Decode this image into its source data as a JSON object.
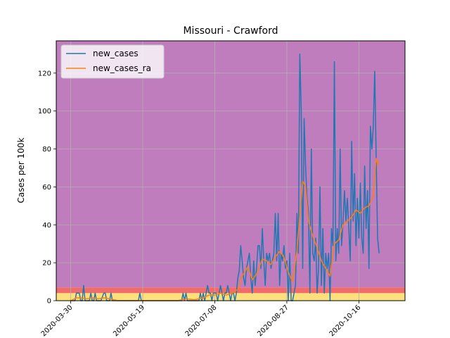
{
  "chart_data": {
    "type": "line",
    "title": "Missouri - Crawford",
    "xlabel": "",
    "ylabel": "Cases per 100k",
    "xlim": [
      "2020-03-20",
      "2020-11-17"
    ],
    "ylim": [
      0,
      137
    ],
    "grid": true,
    "legend_position": "top-left",
    "x_tick_labels": [
      "2020-03-30",
      "2020-05-19",
      "2020-07-08",
      "2020-08-27",
      "2020-10-16"
    ],
    "y_ticks": [
      0,
      20,
      40,
      60,
      80,
      100,
      120
    ],
    "background_bands": [
      {
        "from": 0,
        "to": 4,
        "color": "#fbe07c"
      },
      {
        "from": 4,
        "to": 7,
        "color": "#f26b6b"
      },
      {
        "from": 7,
        "to": 137,
        "color": "#bf7dbd"
      }
    ],
    "series": [
      {
        "name": "new_cases",
        "color": "#1f77b4",
        "points": [
          [
            "2020-03-30",
            0
          ],
          [
            "2020-04-02",
            0
          ],
          [
            "2020-04-03",
            4
          ],
          [
            "2020-04-05",
            4
          ],
          [
            "2020-04-06",
            0
          ],
          [
            "2020-04-07",
            0
          ],
          [
            "2020-04-08",
            8
          ],
          [
            "2020-04-09",
            0
          ],
          [
            "2020-04-10",
            0
          ],
          [
            "2020-04-12",
            0
          ],
          [
            "2020-04-13",
            4
          ],
          [
            "2020-04-14",
            0
          ],
          [
            "2020-04-15",
            0
          ],
          [
            "2020-04-16",
            4
          ],
          [
            "2020-04-17",
            0
          ],
          [
            "2020-04-20",
            0
          ],
          [
            "2020-04-22",
            4
          ],
          [
            "2020-04-23",
            4
          ],
          [
            "2020-04-24",
            0
          ],
          [
            "2020-04-26",
            0
          ],
          [
            "2020-04-27",
            4
          ],
          [
            "2020-04-28",
            0
          ],
          [
            "2020-05-16",
            0
          ],
          [
            "2020-05-17",
            4
          ],
          [
            "2020-05-18",
            0
          ],
          [
            "2020-06-15",
            0
          ],
          [
            "2020-06-16",
            4
          ],
          [
            "2020-06-17",
            0
          ],
          [
            "2020-06-18",
            4
          ],
          [
            "2020-06-19",
            0
          ],
          [
            "2020-06-27",
            0
          ],
          [
            "2020-06-28",
            4
          ],
          [
            "2020-06-29",
            0
          ],
          [
            "2020-06-30",
            4
          ],
          [
            "2020-07-01",
            0
          ],
          [
            "2020-07-02",
            4
          ],
          [
            "2020-07-03",
            8
          ],
          [
            "2020-07-04",
            4
          ],
          [
            "2020-07-05",
            4
          ],
          [
            "2020-07-06",
            0
          ],
          [
            "2020-07-07",
            4
          ],
          [
            "2020-07-08",
            4
          ],
          [
            "2020-07-09",
            4
          ],
          [
            "2020-07-10",
            0
          ],
          [
            "2020-07-11",
            4
          ],
          [
            "2020-07-12",
            8
          ],
          [
            "2020-07-13",
            4
          ],
          [
            "2020-07-14",
            0
          ],
          [
            "2020-07-15",
            4
          ],
          [
            "2020-07-16",
            4
          ],
          [
            "2020-07-17",
            8
          ],
          [
            "2020-07-18",
            4
          ],
          [
            "2020-07-19",
            0
          ],
          [
            "2020-07-20",
            4
          ],
          [
            "2020-07-21",
            4
          ],
          [
            "2020-07-22",
            0
          ],
          [
            "2020-07-23",
            4
          ],
          [
            "2020-07-24",
            12
          ],
          [
            "2020-07-25",
            16
          ],
          [
            "2020-07-26",
            29
          ],
          [
            "2020-07-27",
            21
          ],
          [
            "2020-07-28",
            12
          ],
          [
            "2020-07-29",
            8
          ],
          [
            "2020-07-30",
            17
          ],
          [
            "2020-07-31",
            21
          ],
          [
            "2020-08-01",
            25
          ],
          [
            "2020-08-02",
            12
          ],
          [
            "2020-08-03",
            4
          ],
          [
            "2020-08-04",
            21
          ],
          [
            "2020-08-05",
            8
          ],
          [
            "2020-08-06",
            17
          ],
          [
            "2020-08-07",
            29
          ],
          [
            "2020-08-08",
            29
          ],
          [
            "2020-08-09",
            17
          ],
          [
            "2020-08-10",
            38
          ],
          [
            "2020-08-11",
            21
          ],
          [
            "2020-08-12",
            8
          ],
          [
            "2020-08-13",
            25
          ],
          [
            "2020-08-14",
            21
          ],
          [
            "2020-08-15",
            25
          ],
          [
            "2020-08-16",
            17
          ],
          [
            "2020-08-17",
            21
          ],
          [
            "2020-08-18",
            25
          ],
          [
            "2020-08-19",
            46
          ],
          [
            "2020-08-20",
            21
          ],
          [
            "2020-08-21",
            46
          ],
          [
            "2020-08-22",
            8
          ],
          [
            "2020-08-23",
            25
          ],
          [
            "2020-08-24",
            21
          ],
          [
            "2020-08-25",
            29
          ],
          [
            "2020-08-26",
            17
          ],
          [
            "2020-08-27",
            21
          ],
          [
            "2020-08-28",
            0
          ],
          [
            "2020-08-29",
            25
          ],
          [
            "2020-08-30",
            0
          ],
          [
            "2020-08-31",
            0
          ],
          [
            "2020-09-01",
            4
          ],
          [
            "2020-09-02",
            8
          ],
          [
            "2020-09-03",
            46
          ],
          [
            "2020-09-04",
            25
          ],
          [
            "2020-09-05",
            130
          ],
          [
            "2020-09-06",
            100
          ],
          [
            "2020-09-07",
            17
          ],
          [
            "2020-09-08",
            96
          ],
          [
            "2020-09-09",
            71
          ],
          [
            "2020-09-10",
            54
          ],
          [
            "2020-09-11",
            46
          ],
          [
            "2020-09-12",
            4
          ],
          [
            "2020-09-13",
            80
          ],
          [
            "2020-09-14",
            25
          ],
          [
            "2020-09-15",
            21
          ],
          [
            "2020-09-16",
            33
          ],
          [
            "2020-09-17",
            4
          ],
          [
            "2020-09-18",
            17
          ],
          [
            "2020-09-19",
            60
          ],
          [
            "2020-09-20",
            8
          ],
          [
            "2020-09-21",
            38
          ],
          [
            "2020-09-22",
            4
          ],
          [
            "2020-09-23",
            25
          ],
          [
            "2020-09-24",
            17
          ],
          [
            "2020-09-25",
            25
          ],
          [
            "2020-09-26",
            0
          ],
          [
            "2020-09-27",
            38
          ],
          [
            "2020-09-28",
            29
          ],
          [
            "2020-09-29",
            126
          ],
          [
            "2020-09-30",
            21
          ],
          [
            "2020-10-01",
            38
          ],
          [
            "2020-10-02",
            25
          ],
          [
            "2020-10-03",
            80
          ],
          [
            "2020-10-04",
            29
          ],
          [
            "2020-10-05",
            42
          ],
          [
            "2020-10-06",
            58
          ],
          [
            "2020-10-07",
            42
          ],
          [
            "2020-10-08",
            54
          ],
          [
            "2020-10-09",
            38
          ],
          [
            "2020-10-10",
            21
          ],
          [
            "2020-10-11",
            84
          ],
          [
            "2020-10-12",
            42
          ],
          [
            "2020-10-13",
            67
          ],
          [
            "2020-10-14",
            29
          ],
          [
            "2020-10-15",
            54
          ],
          [
            "2020-10-16",
            33
          ],
          [
            "2020-10-17",
            62
          ],
          [
            "2020-10-18",
            33
          ],
          [
            "2020-10-19",
            25
          ],
          [
            "2020-10-20",
            71
          ],
          [
            "2020-10-21",
            38
          ],
          [
            "2020-10-22",
            58
          ],
          [
            "2020-10-23",
            17
          ],
          [
            "2020-10-24",
            92
          ],
          [
            "2020-10-25",
            80
          ],
          [
            "2020-10-26",
            92
          ],
          [
            "2020-10-27",
            121
          ],
          [
            "2020-10-28",
            75
          ],
          [
            "2020-10-29",
            33
          ],
          [
            "2020-10-30",
            25
          ]
        ]
      },
      {
        "name": "new_cases_ra",
        "color": "#ff7f0e",
        "points": [
          [
            "2020-03-30",
            0
          ],
          [
            "2020-04-03",
            1.5
          ],
          [
            "2020-04-06",
            1.5
          ],
          [
            "2020-04-10",
            1
          ],
          [
            "2020-04-14",
            1.5
          ],
          [
            "2020-04-18",
            1
          ],
          [
            "2020-04-22",
            1.5
          ],
          [
            "2020-04-26",
            1
          ],
          [
            "2020-05-02",
            0
          ],
          [
            "2020-06-12",
            0
          ],
          [
            "2020-06-18",
            1
          ],
          [
            "2020-06-24",
            0.5
          ],
          [
            "2020-06-30",
            1.5
          ],
          [
            "2020-07-04",
            3
          ],
          [
            "2020-07-08",
            3
          ],
          [
            "2020-07-12",
            4
          ],
          [
            "2020-07-16",
            3
          ],
          [
            "2020-07-20",
            4
          ],
          [
            "2020-07-24",
            6
          ],
          [
            "2020-07-27",
            13
          ],
          [
            "2020-07-31",
            18
          ],
          [
            "2020-08-03",
            11
          ],
          [
            "2020-08-06",
            14
          ],
          [
            "2020-08-10",
            22
          ],
          [
            "2020-08-13",
            21
          ],
          [
            "2020-08-16",
            19
          ],
          [
            "2020-08-19",
            23
          ],
          [
            "2020-08-22",
            26
          ],
          [
            "2020-08-25",
            23
          ],
          [
            "2020-08-28",
            15
          ],
          [
            "2020-08-31",
            10
          ],
          [
            "2020-09-03",
            26
          ],
          [
            "2020-09-05",
            45
          ],
          [
            "2020-09-07",
            63
          ],
          [
            "2020-09-09",
            60
          ],
          [
            "2020-09-11",
            42
          ],
          [
            "2020-09-14",
            34
          ],
          [
            "2020-09-17",
            28
          ],
          [
            "2020-09-20",
            21
          ],
          [
            "2020-09-23",
            17
          ],
          [
            "2020-09-26",
            13
          ],
          [
            "2020-09-29",
            30
          ],
          [
            "2020-10-02",
            32
          ],
          [
            "2020-10-05",
            40
          ],
          [
            "2020-10-08",
            42
          ],
          [
            "2020-10-11",
            44
          ],
          [
            "2020-10-14",
            48
          ],
          [
            "2020-10-17",
            46
          ],
          [
            "2020-10-20",
            49
          ],
          [
            "2020-10-23",
            50
          ],
          [
            "2020-10-26",
            55
          ],
          [
            "2020-10-28",
            75
          ],
          [
            "2020-10-29",
            72
          ],
          [
            "2020-10-30",
            73
          ]
        ]
      }
    ]
  }
}
